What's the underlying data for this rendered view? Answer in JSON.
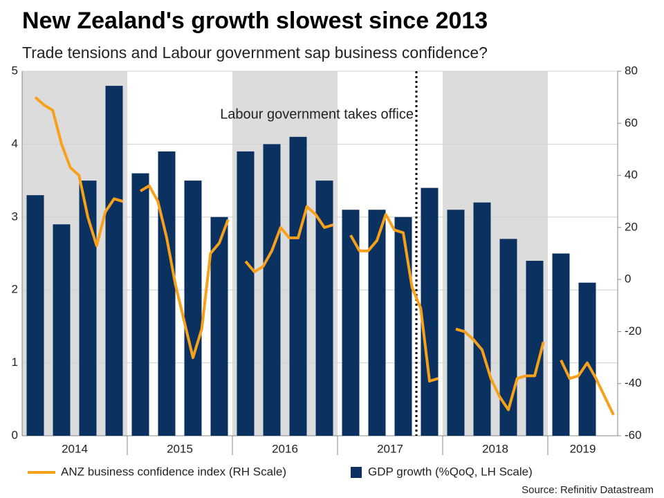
{
  "chart_data": {
    "type": "bar-line",
    "title": "New Zealand's growth slowest since 2013",
    "subtitle": "Trade tensions and Labour government sap business confidence?",
    "annotation": "Labour government takes office",
    "source": "Source: Refinitiv Datastream",
    "year_labels": [
      "2014",
      "2015",
      "2016",
      "2017",
      "2018",
      "2019"
    ],
    "series": [
      {
        "name": "ANZ business confidence index (RH Scale)",
        "type": "line",
        "axis": "y2",
        "color": "#f7a11a",
        "values": [
          70,
          67,
          65,
          52,
          43,
          40,
          24,
          13,
          26,
          31,
          30,
          null,
          34,
          36,
          30,
          16,
          -2,
          -16,
          -30,
          -19,
          10,
          14,
          23,
          null,
          7,
          3,
          5,
          11,
          20,
          16,
          16,
          28,
          25,
          20,
          21,
          null,
          17,
          11,
          11,
          15,
          25,
          19,
          18,
          -3,
          -11,
          -39,
          -38,
          null,
          -19,
          -20,
          -23,
          -27,
          -38,
          -45,
          -50,
          -38,
          -37,
          -37,
          -24,
          null,
          -31,
          -38,
          -37,
          -32,
          -38,
          -45,
          -52
        ]
      },
      {
        "name": "GDP growth (%QoQ, LH Scale)",
        "type": "bar",
        "axis": "y",
        "color": "#0b3160",
        "values": [
          3.3,
          2.9,
          3.5,
          4.8,
          3.6,
          3.9,
          3.5,
          3.0,
          3.9,
          4.0,
          4.1,
          3.5,
          3.1,
          3.1,
          3.0,
          3.4,
          3.1,
          3.2,
          2.7,
          2.4,
          2.5,
          2.1
        ]
      }
    ],
    "ylim": [
      0,
      5
    ],
    "yticks": [
      0,
      1,
      2,
      3,
      4,
      5
    ],
    "y2lim": [
      -60,
      80
    ],
    "y2ticks": [
      -60,
      -40,
      -20,
      0,
      20,
      40,
      60,
      80
    ],
    "grid": true
  }
}
